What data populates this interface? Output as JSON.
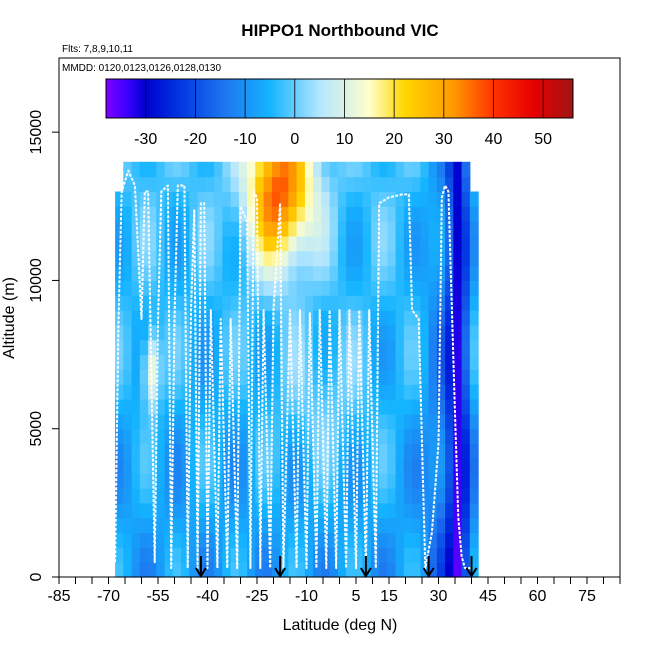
{
  "chart_data": {
    "type": "heatmap",
    "title": "HIPPO1 Northbound VIC",
    "flights_text": "Flts: 7,8,9,10,11",
    "dates_text": "MMDD: 0120,0123,0126,0128,0130",
    "xlabel": "Latitude (deg N)",
    "ylabel": "Altitude (m)",
    "xlim": [
      -85,
      85
    ],
    "ylim": [
      0,
      17500
    ],
    "x_tick_labels": [
      "-85",
      "-70",
      "-55",
      "-40",
      "-25",
      "-10",
      "5",
      "15",
      "30",
      "45",
      "60",
      "75"
    ],
    "x_tick_values": [
      -85,
      -70,
      -55,
      -40,
      -25,
      -10,
      5,
      15,
      30,
      45,
      60,
      75
    ],
    "y_tick_labels": [
      "0",
      "5000",
      "10000",
      "15000"
    ],
    "y_tick_values": [
      0,
      5000,
      10000,
      15000
    ],
    "colorbar": {
      "range": [
        -38,
        56
      ],
      "tick_labels": [
        "-30",
        "-20",
        "-10",
        "0",
        "10",
        "20",
        "30",
        "40",
        "50"
      ],
      "tick_values": [
        -30,
        -20,
        -10,
        0,
        10,
        20,
        30,
        40,
        50
      ],
      "colors": [
        "#7f00ff",
        "#3f00ff",
        "#0000d0",
        "#0030e0",
        "#1e78f0",
        "#14b4ff",
        "#b4e6ff",
        "#ffffcc",
        "#ffd700",
        "#ff9900",
        "#ff3300",
        "#e60000",
        "#a01414"
      ],
      "stops": [
        -38,
        -34,
        -30,
        -24,
        -14,
        -5,
        5,
        15,
        22,
        32,
        40,
        48,
        56
      ]
    },
    "flight_date_arrows_lat": [
      -42,
      -18,
      8,
      27,
      40
    ],
    "region_bounds": {
      "lat_min": -68,
      "lat_max": 41,
      "alt_max": 14000
    },
    "flight_track": [
      [
        -68,
        500
      ],
      [
        -67,
        8500
      ],
      [
        -66,
        13000
      ],
      [
        -64,
        13700
      ],
      [
        -62,
        13200
      ],
      [
        -60,
        8700
      ],
      [
        -59,
        13000
      ],
      [
        -58,
        13000
      ],
      [
        -56,
        500
      ],
      [
        -55,
        8600
      ],
      [
        -54,
        13000
      ],
      [
        -52,
        13200
      ],
      [
        -51,
        300
      ],
      [
        -50,
        8700
      ],
      [
        -49,
        13200
      ],
      [
        -47,
        13200
      ],
      [
        -46,
        300
      ],
      [
        -45,
        9000
      ],
      [
        -44,
        12400
      ],
      [
        -43,
        300
      ],
      [
        -42,
        12600
      ],
      [
        -41,
        12600
      ],
      [
        -40,
        300
      ],
      [
        -39,
        9000
      ],
      [
        -37,
        300
      ],
      [
        -36,
        8700
      ],
      [
        -34,
        300
      ],
      [
        -33,
        8700
      ],
      [
        -31,
        300
      ],
      [
        -30,
        12500
      ],
      [
        -28,
        12000
      ],
      [
        -27,
        300
      ],
      [
        -26,
        13000
      ],
      [
        -25,
        12800
      ],
      [
        -24,
        300
      ],
      [
        -23,
        9000
      ],
      [
        -21,
        300
      ],
      [
        -20,
        9000
      ],
      [
        -18,
        12600
      ],
      [
        -17,
        300
      ],
      [
        -15,
        9000
      ],
      [
        -13,
        300
      ],
      [
        -12,
        9000
      ],
      [
        -10,
        300
      ],
      [
        -9,
        8900
      ],
      [
        -7,
        300
      ],
      [
        -6,
        9000
      ],
      [
        -4,
        300
      ],
      [
        -3,
        9000
      ],
      [
        -1,
        300
      ],
      [
        0,
        9000
      ],
      [
        2,
        300
      ],
      [
        3,
        9000
      ],
      [
        5,
        300
      ],
      [
        6,
        9000
      ],
      [
        8,
        300
      ],
      [
        9,
        9000
      ],
      [
        11,
        300
      ],
      [
        12,
        12600
      ],
      [
        15,
        12800
      ],
      [
        19,
        12900
      ],
      [
        21,
        12900
      ],
      [
        22,
        9000
      ],
      [
        24,
        8700
      ],
      [
        26,
        300
      ],
      [
        28,
        1500
      ],
      [
        30,
        4500
      ],
      [
        31,
        12800
      ],
      [
        32,
        13200
      ],
      [
        33,
        13000
      ],
      [
        35,
        5500
      ],
      [
        36,
        2000
      ],
      [
        37,
        700
      ],
      [
        38,
        300
      ],
      [
        40,
        300
      ]
    ]
  }
}
